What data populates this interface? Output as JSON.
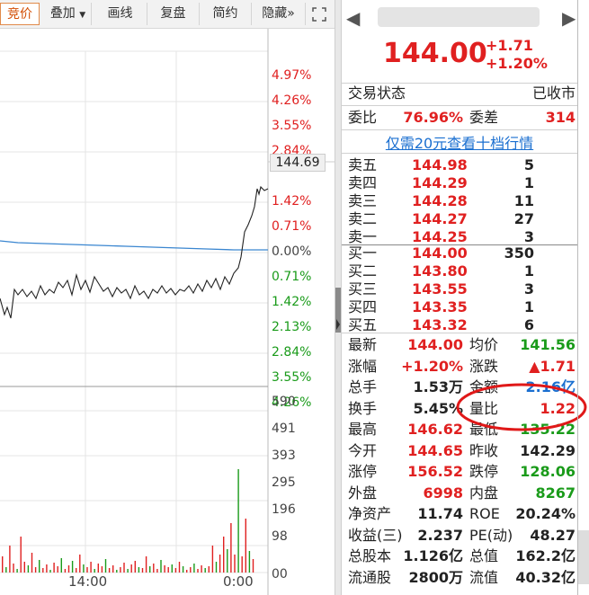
{
  "toolbar": {
    "tabs": [
      "竞价",
      "叠加",
      "画线",
      "复盘",
      "简约",
      "隐藏"
    ],
    "overlay_arrow": "▼",
    "hide_arrow": "»"
  },
  "axis": {
    "upper_labels": [
      {
        "t": "4.97%",
        "c": "red"
      },
      {
        "t": "4.26%",
        "c": "red"
      },
      {
        "t": "3.55%",
        "c": "red"
      },
      {
        "t": "2.84%",
        "c": "red"
      },
      {
        "t": "1.42%",
        "c": "red"
      },
      {
        "t": "0.71%",
        "c": "red"
      },
      {
        "t": "0.00%",
        "c": "gray"
      },
      {
        "t": "0.71%",
        "c": "green"
      },
      {
        "t": "1.42%",
        "c": "green"
      },
      {
        "t": "2.13%",
        "c": "green"
      },
      {
        "t": "2.84%",
        "c": "green"
      },
      {
        "t": "3.55%",
        "c": "green"
      },
      {
        "t": "4.26%",
        "c": "green"
      }
    ],
    "price_tag": "144.69",
    "volume_labels": [
      "590",
      "491",
      "393",
      "295",
      "196",
      "98",
      "00"
    ],
    "time_labels": [
      "14:00",
      "0:00"
    ]
  },
  "header": {
    "price": "144.00",
    "change": "+1.71",
    "change_pct": "+1.20%",
    "prev_arrow": "◀",
    "next_arrow": "▶"
  },
  "status": {
    "label": "交易状态",
    "value": "已收市",
    "weibi_label": "委比",
    "weibi_value": "76.96%",
    "weicha_label": "委差",
    "weicha_value": "314",
    "promo_link": "仅需20元查看十档行情"
  },
  "orderbook": {
    "asks": [
      {
        "label": "卖五",
        "price": "144.98",
        "vol": "5"
      },
      {
        "label": "卖四",
        "price": "144.29",
        "vol": "1"
      },
      {
        "label": "卖三",
        "price": "144.28",
        "vol": "11"
      },
      {
        "label": "卖二",
        "price": "144.27",
        "vol": "27"
      },
      {
        "label": "卖一",
        "price": "144.25",
        "vol": "3"
      }
    ],
    "bids": [
      {
        "label": "买一",
        "price": "144.00",
        "vol": "350"
      },
      {
        "label": "买二",
        "price": "143.80",
        "vol": "1"
      },
      {
        "label": "买三",
        "price": "143.55",
        "vol": "3"
      },
      {
        "label": "买四",
        "price": "143.35",
        "vol": "1"
      },
      {
        "label": "买五",
        "price": "143.32",
        "vol": "6"
      }
    ]
  },
  "stats": [
    {
      "l1": "最新",
      "v1": "144.00",
      "c1": "red",
      "l2": "均价",
      "v2": "141.56",
      "c2": "green"
    },
    {
      "l1": "涨幅",
      "v1": "+1.20%",
      "c1": "red",
      "l2": "涨跌",
      "v2": "▲1.71",
      "c2": "red"
    },
    {
      "l1": "总手",
      "v1": "1.53万",
      "c1": "dark",
      "l2": "金额",
      "v2": "2.16亿",
      "c2": "blue"
    },
    {
      "l1": "换手",
      "v1": "5.45%",
      "c1": "dark",
      "l2": "量比",
      "v2": "1.22",
      "c2": "red"
    },
    {
      "l1": "最高",
      "v1": "146.62",
      "c1": "red",
      "l2": "最低",
      "v2": "135.22",
      "c2": "green"
    },
    {
      "l1": "今开",
      "v1": "144.65",
      "c1": "red",
      "l2": "昨收",
      "v2": "142.29",
      "c2": "dark"
    },
    {
      "l1": "涨停",
      "v1": "156.52",
      "c1": "red",
      "l2": "跌停",
      "v2": "128.06",
      "c2": "green"
    },
    {
      "l1": "外盘",
      "v1": "6998",
      "c1": "red",
      "l2": "内盘",
      "v2": "8267",
      "c2": "green"
    },
    {
      "l1": "净资产",
      "v1": "11.74",
      "c1": "dark",
      "l2": "ROE",
      "v2": "20.24%",
      "c2": "dark"
    },
    {
      "l1": "收益(三)",
      "v1": "2.237",
      "c1": "dark",
      "l2": "PE(动)",
      "v2": "48.27",
      "c2": "dark"
    },
    {
      "l1": "总股本",
      "v1": "1.126亿",
      "c1": "dark",
      "l2": "总值",
      "v2": "162.2亿",
      "c2": "dark"
    },
    {
      "l1": "流通股",
      "v1": "2800万",
      "c1": "dark",
      "l2": "流值",
      "v2": "40.32亿",
      "c2": "dark"
    }
  ],
  "colors": {
    "red": "#e02020",
    "green": "#1a9b1a",
    "blue": "#1a6fd0",
    "dark": "#222222",
    "accent": "#d24b00"
  }
}
